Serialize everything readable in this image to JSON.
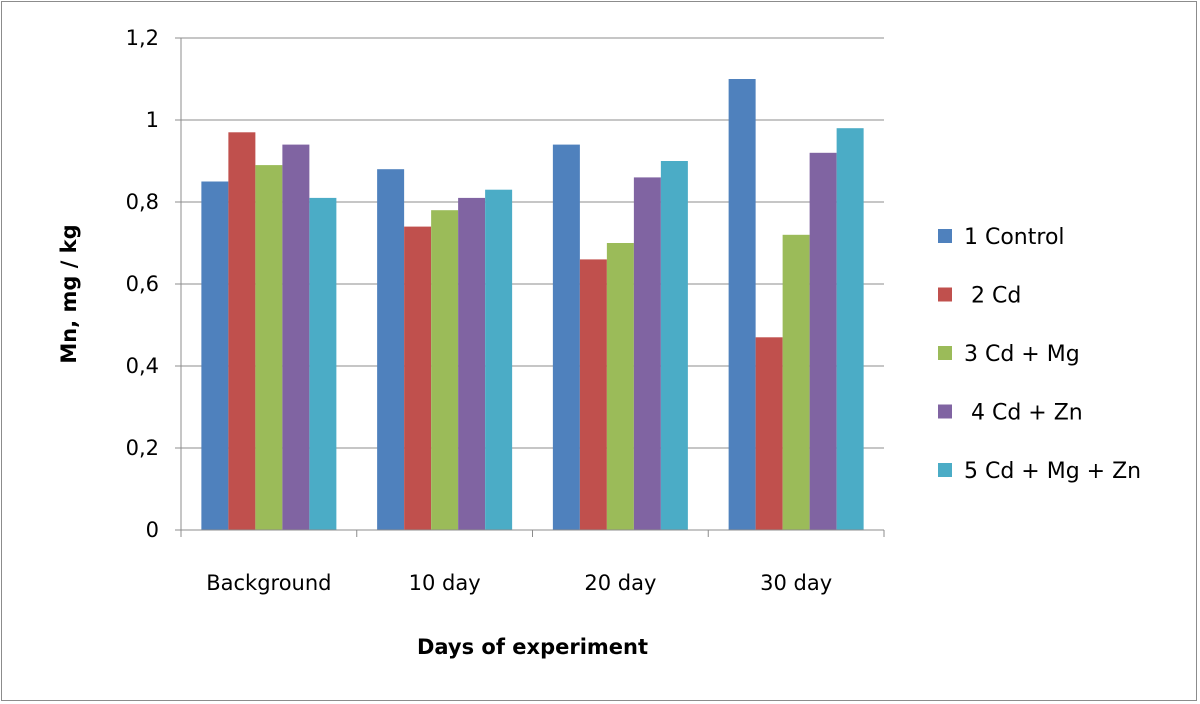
{
  "chart_data": {
    "type": "bar",
    "categories": [
      "Background",
      "10 day",
      "20 day",
      "30 day"
    ],
    "series": [
      {
        "name": "1 Control",
        "color": "#4f81bd",
        "values": [
          0.85,
          0.88,
          0.94,
          1.1
        ]
      },
      {
        "name": " 2 Cd",
        "color": "#c0504d",
        "values": [
          0.97,
          0.74,
          0.66,
          0.47
        ]
      },
      {
        "name": "3 Cd + Mg",
        "color": "#9bbb59",
        "values": [
          0.89,
          0.78,
          0.7,
          0.72
        ]
      },
      {
        "name": " 4 Cd + Zn",
        "color": "#8064a2",
        "values": [
          0.94,
          0.81,
          0.86,
          0.92
        ]
      },
      {
        "name": "5 Cd + Mg + Zn",
        "color": "#4bacc6",
        "values": [
          0.81,
          0.83,
          0.9,
          0.98
        ]
      }
    ],
    "xlabel": "Days of experiment",
    "ylabel": "Mn, mg / kg",
    "ylim": [
      0,
      1.2
    ],
    "yticks": [
      "0",
      "0,2",
      "0,4",
      "0,6",
      "0,8",
      "1",
      "1,2"
    ],
    "grid": true,
    "legend_position": "right"
  }
}
